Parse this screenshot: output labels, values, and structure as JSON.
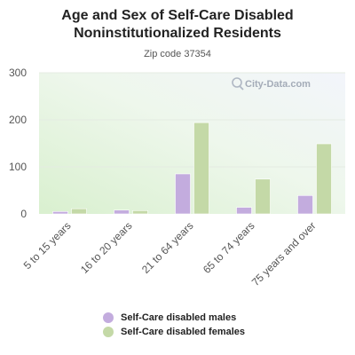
{
  "chart_data": {
    "type": "bar",
    "title": "Age and Sex of Self-Care Disabled Noninstitutionalized Residents",
    "subtitle": "Zip code 37354",
    "categories": [
      "5 to 15 years",
      "16 to 20 years",
      "21 to 64 years",
      "65 to 74 years",
      "75 years and over"
    ],
    "series": [
      {
        "name": "Self-Care disabled males",
        "values": [
          5,
          8,
          85,
          14,
          39
        ],
        "color": "#c3acde"
      },
      {
        "name": "Self-Care disabled females",
        "values": [
          11,
          7,
          194,
          74,
          149
        ],
        "color": "#c4d9a7"
      }
    ],
    "ylim": [
      0,
      300
    ],
    "yticks": [
      0,
      100,
      200,
      300
    ],
    "grid": true,
    "legend": "bottom"
  },
  "watermark": "City-Data.com"
}
